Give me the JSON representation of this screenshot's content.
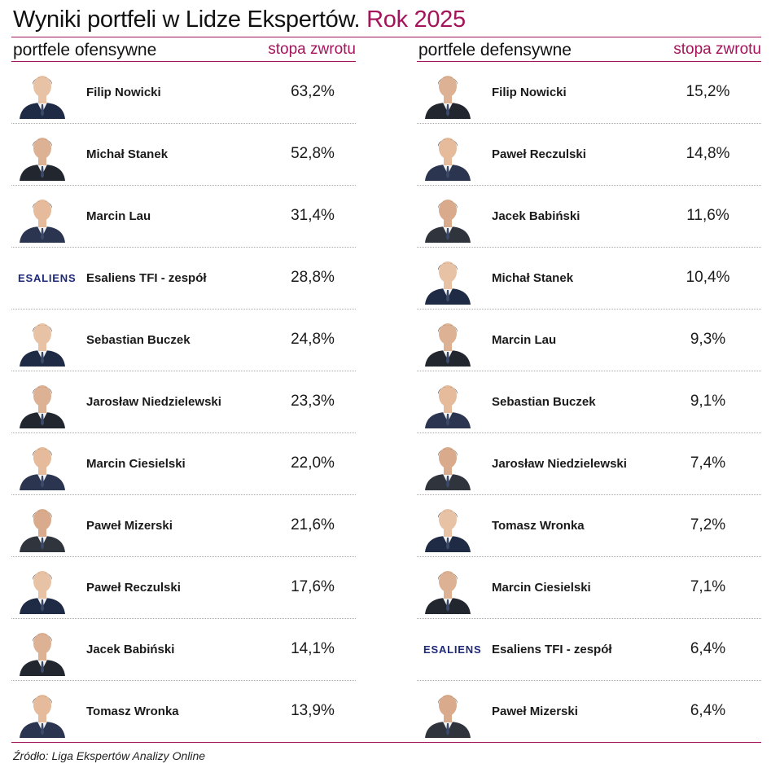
{
  "title": {
    "main": "Wyniki portfeli w Lidze Ekspertów.",
    "accent": "Rok 2025"
  },
  "offensive": {
    "header": "portfele ofensywne",
    "rate_header": "stopa zwrotu",
    "rows": [
      {
        "name": "Filip Nowicki",
        "rate": "63,2%",
        "kind": "photo"
      },
      {
        "name": "Michał Stanek",
        "rate": "52,8%",
        "kind": "photo"
      },
      {
        "name": "Marcin Lau",
        "rate": "31,4%",
        "kind": "photo"
      },
      {
        "name": "Esaliens TFI - zespół",
        "rate": "28,8%",
        "kind": "logo",
        "logo_text": "ESALIENS"
      },
      {
        "name": "Sebastian Buczek",
        "rate": "24,8%",
        "kind": "photo"
      },
      {
        "name": "Jarosław Niedzielewski",
        "rate": "23,3%",
        "kind": "photo"
      },
      {
        "name": "Marcin Ciesielski",
        "rate": "22,0%",
        "kind": "photo"
      },
      {
        "name": "Paweł Mizerski",
        "rate": "21,6%",
        "kind": "photo"
      },
      {
        "name": "Paweł Reczulski",
        "rate": "17,6%",
        "kind": "photo"
      },
      {
        "name": "Jacek Babiński",
        "rate": "14,1%",
        "kind": "photo"
      },
      {
        "name": "Tomasz Wronka",
        "rate": "13,9%",
        "kind": "photo"
      }
    ]
  },
  "defensive": {
    "header": "portfele defensywne",
    "rate_header": "stopa zwrotu",
    "rows": [
      {
        "name": "Filip Nowicki",
        "rate": "15,2%",
        "kind": "photo"
      },
      {
        "name": "Paweł Reczulski",
        "rate": "14,8%",
        "kind": "photo"
      },
      {
        "name": "Jacek Babiński",
        "rate": "11,6%",
        "kind": "photo"
      },
      {
        "name": "Michał Stanek",
        "rate": "10,4%",
        "kind": "photo"
      },
      {
        "name": "Marcin Lau",
        "rate": "9,3%",
        "kind": "photo"
      },
      {
        "name": "Sebastian Buczek",
        "rate": "9,1%",
        "kind": "photo"
      },
      {
        "name": "Jarosław Niedzielewski",
        "rate": "7,4%",
        "kind": "photo"
      },
      {
        "name": "Tomasz Wronka",
        "rate": "7,2%",
        "kind": "photo"
      },
      {
        "name": "Marcin Ciesielski",
        "rate": "7,1%",
        "kind": "photo"
      },
      {
        "name": "Esaliens TFI - zespół",
        "rate": "6,4%",
        "kind": "logo",
        "logo_text": "ESALIENS"
      },
      {
        "name": "Paweł Mizerski",
        "rate": "6,4%",
        "kind": "photo"
      }
    ]
  },
  "footnote": "Źródło: Liga Ekspertów Analizy Online",
  "colors": {
    "accent": "#a3145a",
    "logo": "#1e2a78"
  }
}
